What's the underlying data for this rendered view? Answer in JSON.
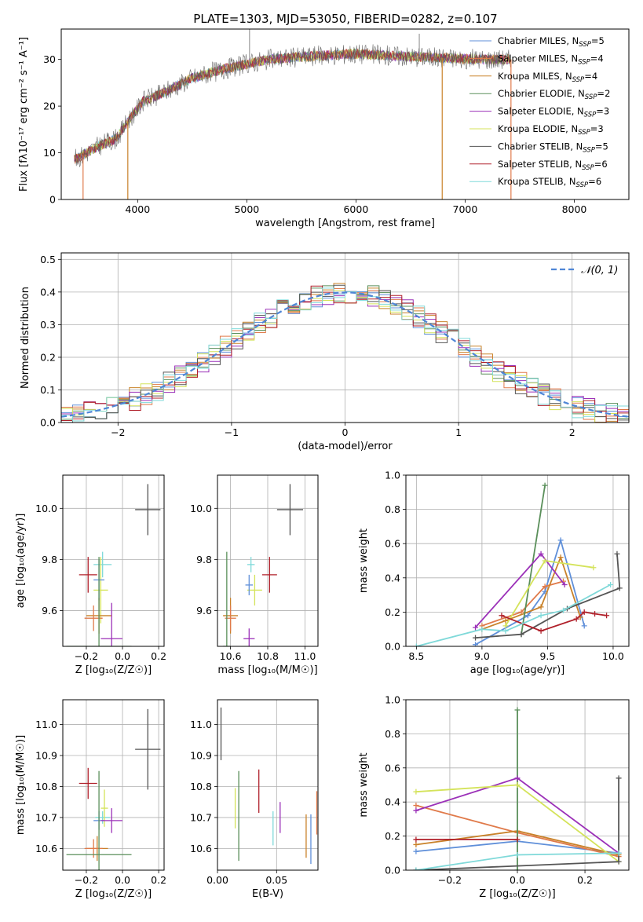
{
  "figure": {
    "title": "PLATE=1303, MJD=53050, FIBERID=0282, z=0.107"
  },
  "models": [
    {
      "name": "Chabrier MILES",
      "nssp": "5",
      "color": "#5f8fd9"
    },
    {
      "name": "Salpeter MILES",
      "nssp": "4",
      "color": "#e07a4a"
    },
    {
      "name": "Kroupa MILES",
      "nssp": "4",
      "color": "#c9822a"
    },
    {
      "name": "Chabrier ELODIE",
      "nssp": "2",
      "color": "#5a8f5a"
    },
    {
      "name": "Salpeter ELODIE",
      "nssp": "3",
      "color": "#9b30b8"
    },
    {
      "name": "Kroupa ELODIE",
      "nssp": "3",
      "color": "#d4e35a"
    },
    {
      "name": "Chabrier STELIB",
      "nssp": "5",
      "color": "#555555"
    },
    {
      "name": "Salpeter STELIB",
      "nssp": "6",
      "color": "#b0202a"
    },
    {
      "name": "Kroupa STELIB",
      "nssp": "6",
      "color": "#7fd9d9"
    }
  ],
  "chart_data": [
    {
      "id": "spectrum",
      "type": "line",
      "xlabel": "wavelength [Angstrom, rest frame]",
      "ylabel": "Flux [fλ10⁻¹⁷ erg cm⁻² s⁻¹ A⁻¹]",
      "xlim": [
        3300,
        8500
      ],
      "ylim": [
        0,
        36.5
      ],
      "xticks": [
        "4000",
        "5000",
        "6000",
        "7000",
        "8000"
      ],
      "yticks": [
        "0",
        "10",
        "20",
        "30"
      ],
      "grid": false,
      "legend": "right",
      "continuum": {
        "x": [
          3420,
          3500,
          3650,
          3800,
          3950,
          4050,
          4250,
          4500,
          4800,
          5000,
          5200,
          5500,
          5800,
          6000,
          6300,
          6600,
          6900,
          7200,
          7420
        ],
        "y": [
          8.5,
          9.5,
          11.5,
          13,
          18,
          21,
          23,
          26,
          28,
          29,
          30,
          30.5,
          31,
          31.2,
          30.8,
          30.5,
          30.2,
          30,
          30
        ]
      },
      "spikes": [
        {
          "x": 5025,
          "y": 36.5
        },
        {
          "x": 6580,
          "y": 35.5
        }
      ],
      "drops": [
        {
          "x": 3500,
          "series": 1
        },
        {
          "x": 3910,
          "series": 2
        },
        {
          "x": 6790,
          "series": 2
        },
        {
          "x": 7420,
          "series": 1
        }
      ]
    },
    {
      "id": "residual-histogram",
      "type": "histogram",
      "xlabel": "(data-model)/error",
      "ylabel": "Normed distribution",
      "xlim": [
        -2.5,
        2.5
      ],
      "ylim": [
        0,
        0.52
      ],
      "xticks": [
        "−2",
        "−1",
        "0",
        "1",
        "2"
      ],
      "yticks": [
        "0.0",
        "0.1",
        "0.2",
        "0.3",
        "0.4",
        "0.5"
      ],
      "grid": true,
      "reference": {
        "label": "𝒩(0, 1)",
        "mean": 0,
        "sigma": 1
      },
      "bin_width": 0.1,
      "bin_start": -2.5
    },
    {
      "id": "age-vs-metallicity",
      "type": "errorbar",
      "xlabel": "Z [log₁₀(Z/Z☉)]",
      "ylabel": "age  [log₁₀(age/yr)]",
      "xlim": [
        -0.33,
        0.23
      ],
      "ylim": [
        9.46,
        10.13
      ],
      "xticks": [
        "−0.2",
        "0.0",
        "0.2"
      ],
      "yticks": [
        "9.6",
        "9.8",
        "10.0"
      ],
      "grid": true,
      "points": [
        {
          "series": 6,
          "x": 0.14,
          "y": 9.995,
          "xerr": 0.07,
          "yerr": 0.1
        },
        {
          "series": 7,
          "x": -0.19,
          "y": 9.74,
          "xerr": 0.05,
          "yerr": 0.07
        },
        {
          "series": 8,
          "x": -0.11,
          "y": 9.78,
          "xerr": 0.05,
          "yerr": 0.05
        },
        {
          "series": 5,
          "x": -0.12,
          "y": 9.68,
          "xerr": 0.04,
          "yerr": 0.13
        },
        {
          "series": 0,
          "x": -0.13,
          "y": 9.72,
          "xerr": 0.03,
          "yerr": 0.08
        },
        {
          "series": 2,
          "x": -0.13,
          "y": 9.58,
          "xerr": 0.07,
          "yerr": 0.07
        },
        {
          "series": 1,
          "x": -0.16,
          "y": 9.57,
          "xerr": 0.05,
          "yerr": 0.05
        },
        {
          "series": 4,
          "x": -0.06,
          "y": 9.49,
          "xerr": 0.06,
          "yerr": 0.14
        },
        {
          "series": 3,
          "x": -0.13,
          "y": 9.46,
          "xerr": 0.18,
          "yerr": 0.35
        }
      ]
    },
    {
      "id": "age-vs-mass",
      "type": "errorbar",
      "xlabel": "mass [log₁₀(M/M☉)]",
      "ylabel": "",
      "xlim": [
        10.53,
        11.07
      ],
      "ylim": [
        9.46,
        10.13
      ],
      "xticks": [
        "10.6",
        "10.8",
        "11.0"
      ],
      "yticks": [
        "9.6",
        "9.8",
        "10.0"
      ],
      "grid": true,
      "points": [
        {
          "series": 6,
          "x": 10.92,
          "y": 9.995,
          "xerr": 0.07,
          "yerr": 0.1
        },
        {
          "series": 7,
          "x": 10.81,
          "y": 9.74,
          "xerr": 0.04,
          "yerr": 0.07
        },
        {
          "series": 8,
          "x": 10.71,
          "y": 9.78,
          "xerr": 0.02,
          "yerr": 0.03
        },
        {
          "series": 5,
          "x": 10.73,
          "y": 9.68,
          "xerr": 0.04,
          "yerr": 0.06
        },
        {
          "series": 0,
          "x": 10.7,
          "y": 9.7,
          "xerr": 0.02,
          "yerr": 0.04
        },
        {
          "series": 2,
          "x": 10.6,
          "y": 9.58,
          "xerr": 0.04,
          "yerr": 0.07
        },
        {
          "series": 1,
          "x": 10.6,
          "y": 9.57,
          "xerr": 0.03,
          "yerr": 0.05
        },
        {
          "series": 4,
          "x": 10.7,
          "y": 9.49,
          "xerr": 0.03,
          "yerr": 0.04
        },
        {
          "series": 3,
          "x": 10.58,
          "y": 9.46,
          "xerr": 0.02,
          "yerr": 0.37
        }
      ]
    },
    {
      "id": "mass-weight-vs-age",
      "type": "line",
      "xlabel": "age  [log₁₀(age/yr)]",
      "ylabel": "mass weight",
      "xlim": [
        8.42,
        10.12
      ],
      "ylim": [
        0,
        1
      ],
      "xticks": [
        "8.5",
        "9.0",
        "9.5",
        "10.0"
      ],
      "yticks": [
        "0.0",
        "0.2",
        "0.4",
        "0.6",
        "0.8",
        "1.0"
      ],
      "grid": true,
      "series": [
        {
          "series": 0,
          "x": [
            8.95,
            9.35,
            9.48,
            9.6,
            9.78
          ],
          "y": [
            0.01,
            0.18,
            0.32,
            0.62,
            0.12
          ]
        },
        {
          "series": 1,
          "x": [
            9.0,
            9.3,
            9.48,
            9.62
          ],
          "y": [
            0.12,
            0.2,
            0.35,
            0.38
          ]
        },
        {
          "series": 2,
          "x": [
            9.0,
            9.18,
            9.45,
            9.6,
            9.75
          ],
          "y": [
            0.1,
            0.15,
            0.23,
            0.52,
            0.17
          ]
        },
        {
          "series": 3,
          "x": [
            9.3,
            9.48
          ],
          "y": [
            0.07,
            0.94
          ]
        },
        {
          "series": 4,
          "x": [
            8.95,
            9.45,
            9.63
          ],
          "y": [
            0.11,
            0.54,
            0.36
          ]
        },
        {
          "series": 5,
          "x": [
            9.18,
            9.48,
            9.85
          ],
          "y": [
            0.12,
            0.5,
            0.46
          ]
        },
        {
          "series": 6,
          "x": [
            8.95,
            9.3,
            9.65,
            10.05,
            10.03
          ],
          "y": [
            0.05,
            0.07,
            0.22,
            0.34,
            0.54
          ]
        },
        {
          "series": 7,
          "x": [
            9.15,
            9.45,
            9.72,
            9.78,
            9.86,
            9.95
          ],
          "y": [
            0.18,
            0.09,
            0.16,
            0.2,
            0.19,
            0.18
          ]
        },
        {
          "series": 8,
          "x": [
            8.5,
            9.0,
            9.18,
            9.45,
            9.62,
            9.98
          ],
          "y": [
            0.0,
            0.1,
            0.09,
            0.18,
            0.21,
            0.36
          ]
        }
      ]
    },
    {
      "id": "mass-vs-metallicity",
      "type": "errorbar",
      "xlabel": "Z [log₁₀(Z/Z☉)]",
      "ylabel": "mass [log₁₀(M/M☉)]",
      "xlim": [
        -0.33,
        0.23
      ],
      "ylim": [
        10.53,
        11.08
      ],
      "xticks": [
        "−0.2",
        "0.0",
        "0.2"
      ],
      "yticks": [
        "10.6",
        "10.7",
        "10.8",
        "10.9",
        "11.0"
      ],
      "grid": true,
      "points": [
        {
          "series": 6,
          "x": 0.14,
          "y": 10.92,
          "xerr": 0.07,
          "yerr": 0.13
        },
        {
          "series": 7,
          "x": -0.19,
          "y": 10.81,
          "xerr": 0.05,
          "yerr": 0.05
        },
        {
          "series": 8,
          "x": -0.11,
          "y": 10.7,
          "xerr": 0.04,
          "yerr": 0.02
        },
        {
          "series": 5,
          "x": -0.1,
          "y": 10.73,
          "xerr": 0.02,
          "yerr": 0.06
        },
        {
          "series": 0,
          "x": -0.13,
          "y": 10.69,
          "xerr": 0.03,
          "yerr": 0.03
        },
        {
          "series": 2,
          "x": -0.14,
          "y": 10.6,
          "xerr": 0.06,
          "yerr": 0.04
        },
        {
          "series": 1,
          "x": -0.16,
          "y": 10.6,
          "xerr": 0.05,
          "yerr": 0.03
        },
        {
          "series": 4,
          "x": -0.06,
          "y": 10.69,
          "xerr": 0.06,
          "yerr": 0.04
        },
        {
          "series": 3,
          "x": -0.13,
          "y": 10.58,
          "xerr": 0.18,
          "yerr": 0.27
        }
      ]
    },
    {
      "id": "mass-vs-extinction",
      "type": "errorbar",
      "xlabel": "E(B-V)",
      "ylabel": "",
      "xlim": [
        0,
        0.085
      ],
      "ylim": [
        10.53,
        11.08
      ],
      "xticks": [
        "0.00",
        "0.05"
      ],
      "yticks": [
        "10.6",
        "10.7",
        "10.8",
        "10.9",
        "11.0"
      ],
      "grid": true,
      "points": [
        {
          "series": 6,
          "x": 0.003,
          "y": 10.97,
          "xerr": 0,
          "yerr": 0.085
        },
        {
          "series": 3,
          "x": 0.018,
          "y": 10.705,
          "xerr": 0,
          "yerr": 0.145
        },
        {
          "series": 5,
          "x": 0.015,
          "y": 10.73,
          "xerr": 0,
          "yerr": 0.065
        },
        {
          "series": 7,
          "x": 0.035,
          "y": 10.785,
          "xerr": 0,
          "yerr": 0.07
        },
        {
          "series": 8,
          "x": 0.047,
          "y": 10.665,
          "xerr": 0,
          "yerr": 0.055
        },
        {
          "series": 4,
          "x": 0.053,
          "y": 10.7,
          "xerr": 0,
          "yerr": 0.05
        },
        {
          "series": 2,
          "x": 0.075,
          "y": 10.64,
          "xerr": 0,
          "yerr": 0.07
        },
        {
          "series": 0,
          "x": 0.079,
          "y": 10.63,
          "xerr": 0,
          "yerr": 0.08
        },
        {
          "series": 1,
          "x": 0.084,
          "y": 10.715,
          "xerr": 0,
          "yerr": 0.07
        }
      ]
    },
    {
      "id": "mass-weight-vs-metallicity",
      "type": "line",
      "xlabel": "Z [log₁₀(Z/Z☉)]",
      "ylabel": "mass weight",
      "xlim": [
        -0.33,
        0.33
      ],
      "ylim": [
        0,
        1
      ],
      "xticks": [
        "−0.2",
        "0.0",
        "0.2"
      ],
      "yticks": [
        "0.0",
        "0.2",
        "0.4",
        "0.6",
        "0.8",
        "1.0"
      ],
      "grid": true,
      "series": [
        {
          "series": 0,
          "x": [
            -0.3,
            0.0,
            0.3
          ],
          "y": [
            0.11,
            0.17,
            0.1
          ]
        },
        {
          "series": 1,
          "x": [
            -0.3,
            0.0,
            0.3
          ],
          "y": [
            0.38,
            0.22,
            0.08
          ]
        },
        {
          "series": 2,
          "x": [
            -0.3,
            0.0,
            0.3
          ],
          "y": [
            0.15,
            0.23,
            0.09
          ]
        },
        {
          "series": 3,
          "x": [
            0.0,
            0.0
          ],
          "y": [
            0.0,
            0.94
          ]
        },
        {
          "series": 4,
          "x": [
            -0.3,
            0.0,
            0.3
          ],
          "y": [
            0.35,
            0.54,
            0.1
          ]
        },
        {
          "series": 5,
          "x": [
            -0.3,
            0.0,
            0.3
          ],
          "y": [
            0.46,
            0.5,
            0.05
          ]
        },
        {
          "series": 6,
          "x": [
            -0.3,
            0.3,
            0.3
          ],
          "y": [
            0.0,
            0.05,
            0.54
          ]
        },
        {
          "series": 7,
          "x": [
            -0.3,
            0.0
          ],
          "y": [
            0.18,
            0.18
          ]
        },
        {
          "series": 8,
          "x": [
            -0.3,
            0.0,
            0.3
          ],
          "y": [
            0.0,
            0.09,
            0.1
          ]
        }
      ]
    }
  ]
}
